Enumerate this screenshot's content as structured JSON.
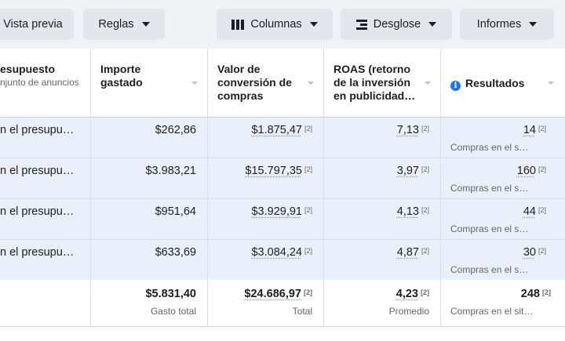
{
  "toolbar": {
    "preview_label": "Vista previa",
    "rules_label": "Reglas",
    "columns_label": "Columnas",
    "breakdown_label": "Desglose",
    "reports_label": "Informes"
  },
  "headers": {
    "budget": "esupuesto",
    "budget_sub": "njunto de anuncios",
    "spent": "Importe gastado",
    "conv_value": "Valor de conversión de compras",
    "roas": "ROAS (retorno de la inversión en publicidad…",
    "results": "Resultados"
  },
  "rows": [
    {
      "budget": "n el presupu…",
      "spent": "$262,86",
      "conv": "$1.875,47",
      "roas": "7,13",
      "results": "14",
      "results_sub": "Compras en el s…"
    },
    {
      "budget": "n el presupu…",
      "spent": "$3.983,21",
      "conv": "$15.797,35",
      "roas": "3,97",
      "results": "160",
      "results_sub": "Compras en el s…"
    },
    {
      "budget": "n el presupu…",
      "spent": "$951,64",
      "conv": "$3.929,91",
      "roas": "4,13",
      "results": "44",
      "results_sub": "Compras en el s…"
    },
    {
      "budget": "n el presupu…",
      "spent": "$633,69",
      "conv": "$3.084,24",
      "roas": "4,87",
      "results": "30",
      "results_sub": "Compras en el s…"
    }
  ],
  "note_marker": "[2]",
  "totals": {
    "spent": "$5.831,40",
    "spent_label": "Gasto total",
    "conv": "$24.686,97",
    "conv_label": "Total",
    "roas": "4,23",
    "roas_label": "Promedio",
    "results": "248",
    "results_label": "Compras en el sit…"
  }
}
